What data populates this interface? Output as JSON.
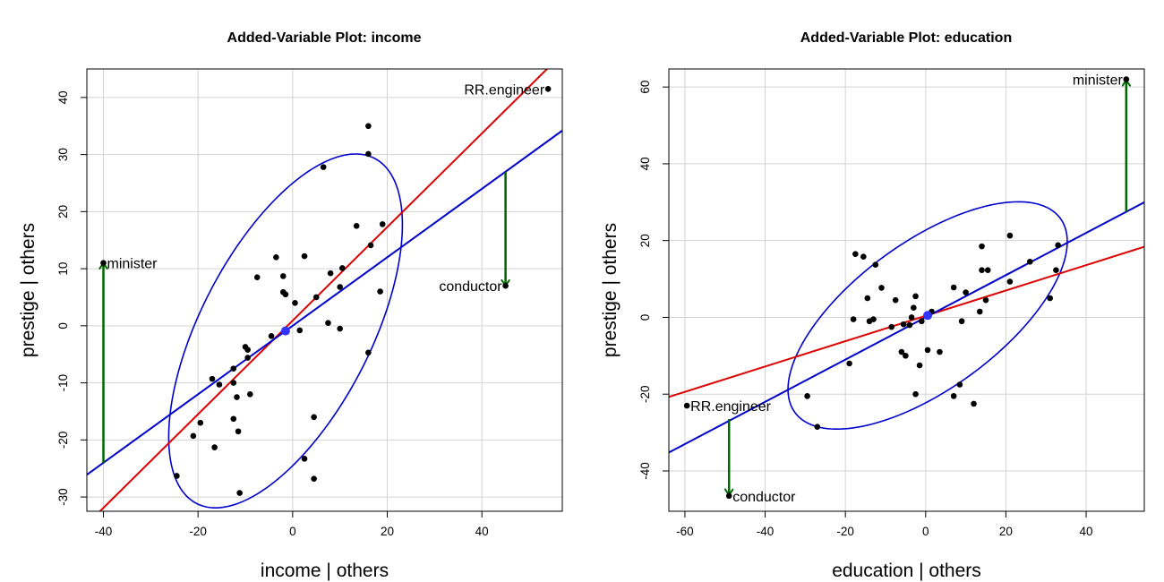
{
  "chart_data": [
    {
      "type": "scatter",
      "title": "Added-Variable Plot: income",
      "xlabel": "income | others",
      "ylabel": "prestige  | others",
      "xlim": [
        -43.5,
        57.0
      ],
      "ylim": [
        -32.5,
        45.0
      ],
      "xticks": [
        -40,
        -20,
        0,
        20,
        40
      ],
      "yticks": [
        -30,
        -20,
        -10,
        0,
        10,
        20,
        30,
        40
      ],
      "grid": true,
      "points": [
        [
          -40,
          11
        ],
        [
          54,
          41.5
        ],
        [
          45,
          7
        ],
        [
          -24.5,
          -26.3
        ],
        [
          -21,
          -19.3
        ],
        [
          -19.5,
          -17
        ],
        [
          -16.5,
          -21.3
        ],
        [
          -17,
          -9.3
        ],
        [
          -15.5,
          -10.3
        ],
        [
          -12.5,
          -7.5
        ],
        [
          -12.5,
          -10
        ],
        [
          -12.5,
          -16.3
        ],
        [
          -11.8,
          -12.5
        ],
        [
          -11.5,
          -18.5
        ],
        [
          -11.2,
          -29.3
        ],
        [
          -10,
          -3.7
        ],
        [
          -9.5,
          -4.2
        ],
        [
          -9.5,
          -5.6
        ],
        [
          -9,
          -12
        ],
        [
          -7.5,
          8.5
        ],
        [
          -4.5,
          -1.8
        ],
        [
          -3.5,
          12
        ],
        [
          -2,
          8.7
        ],
        [
          -2,
          5.9
        ],
        [
          -1.5,
          5.5
        ],
        [
          0.5,
          4
        ],
        [
          1.5,
          -0.8
        ],
        [
          2.5,
          12.2
        ],
        [
          2.5,
          -23.3
        ],
        [
          4.5,
          -16
        ],
        [
          4.5,
          -26.8
        ],
        [
          5,
          5
        ],
        [
          6.5,
          27.8
        ],
        [
          7.5,
          0.5
        ],
        [
          8,
          9.2
        ],
        [
          10,
          -0.5
        ],
        [
          10,
          6.8
        ],
        [
          10.5,
          10.1
        ],
        [
          13.5,
          17.5
        ],
        [
          16,
          35
        ],
        [
          16,
          30.1
        ],
        [
          16,
          -4.7
        ],
        [
          16.5,
          14.1
        ],
        [
          18.5,
          6
        ],
        [
          19,
          17.8
        ]
      ],
      "mean_point": [
        -1.5,
        -0.9
      ],
      "lines": [
        {
          "color": "#dd0000",
          "intercept": 0.9,
          "slope": 0.82
        },
        {
          "color": "#0000cc",
          "intercept": 0.0,
          "slope": 0.6
        }
      ],
      "ellipse": {
        "color": "#0000cc",
        "cx": -1.5,
        "cy": -0.9,
        "sx": 12.35,
        "sy": 15.5,
        "r": 0.6
      },
      "arrows": [
        {
          "x": -40,
          "y_from": -24.0,
          "y_to": 10.8,
          "color": "#006600"
        },
        {
          "x": 45,
          "y_from": 27.0,
          "y_to": 7.2,
          "color": "#006600"
        }
      ],
      "labels": [
        {
          "text": "minister",
          "x": -40,
          "y": 11,
          "anchor": "start"
        },
        {
          "text": "RR.engineer",
          "x": 54,
          "y": 41.5,
          "anchor": "end"
        },
        {
          "text": "conductor",
          "x": 45,
          "y": 7,
          "anchor": "end"
        }
      ]
    },
    {
      "type": "scatter",
      "title": "Added-Variable Plot: education",
      "xlabel": "education | others",
      "ylabel": "prestige  | others",
      "xlim": [
        -64.0,
        54.5
      ],
      "ylim": [
        -50.5,
        64.7
      ],
      "xticks": [
        -60,
        -40,
        -20,
        0,
        20,
        40
      ],
      "yticks": [
        -40,
        -20,
        0,
        20,
        40,
        60
      ],
      "grid": true,
      "points": [
        [
          50,
          62
        ],
        [
          -59.5,
          -23
        ],
        [
          -49,
          -46.5
        ],
        [
          -29.5,
          -20.5
        ],
        [
          -27,
          -28.5
        ],
        [
          -19,
          -12
        ],
        [
          -18,
          -0.5
        ],
        [
          -17.5,
          16.5
        ],
        [
          -15.5,
          15.8
        ],
        [
          -14.5,
          5
        ],
        [
          -14,
          -1
        ],
        [
          -13,
          -0.5
        ],
        [
          -12.5,
          13.7
        ],
        [
          -11,
          7.7
        ],
        [
          -8.5,
          -2.5
        ],
        [
          -7.5,
          4.5
        ],
        [
          -6,
          -9
        ],
        [
          -5.5,
          -1.8
        ],
        [
          -5,
          -10
        ],
        [
          -4,
          -2
        ],
        [
          -3.5,
          0
        ],
        [
          -3,
          2.5
        ],
        [
          -2.5,
          -20
        ],
        [
          -2.5,
          5.5
        ],
        [
          -1.5,
          -12.5
        ],
        [
          -1,
          -1
        ],
        [
          0.5,
          -8.5
        ],
        [
          1.5,
          1.5
        ],
        [
          3.5,
          -9
        ],
        [
          7,
          7.8
        ],
        [
          7,
          -20.5
        ],
        [
          8.5,
          -17.5
        ],
        [
          9,
          -1
        ],
        [
          10,
          6.5
        ],
        [
          12,
          -22.5
        ],
        [
          13.5,
          1.5
        ],
        [
          14,
          18.5
        ],
        [
          14,
          12.3
        ],
        [
          15,
          4.5
        ],
        [
          15.5,
          12.3
        ],
        [
          21,
          21.3
        ],
        [
          21,
          9.3
        ],
        [
          26,
          14.5
        ],
        [
          31,
          5
        ],
        [
          32.5,
          12.3
        ],
        [
          33,
          18.8
        ]
      ],
      "mean_point": [
        0.5,
        0.5
      ],
      "lines": [
        {
          "color": "#dd0000",
          "intercept": 0.4,
          "slope": 0.33
        },
        {
          "color": "#0000cc",
          "intercept": 0.0,
          "slope": 0.55
        }
      ],
      "ellipse": {
        "color": "#0000cc",
        "cx": 0.5,
        "cy": 0.5,
        "sx": 17.4,
        "sy": 14.8,
        "r": 0.65
      },
      "arrows": [
        {
          "x": -49,
          "y_from": -26.5,
          "y_to": -46.0,
          "color": "#006600"
        },
        {
          "x": 50,
          "y_from": 27.5,
          "y_to": 61.5,
          "color": "#006600"
        }
      ],
      "labels": [
        {
          "text": "minister",
          "x": 50,
          "y": 62,
          "anchor": "end"
        },
        {
          "text": "RR.engineer",
          "x": -59.5,
          "y": -23,
          "anchor": "start"
        },
        {
          "text": "conductor",
          "x": -49,
          "y": -46.5,
          "anchor": "start"
        }
      ]
    }
  ]
}
